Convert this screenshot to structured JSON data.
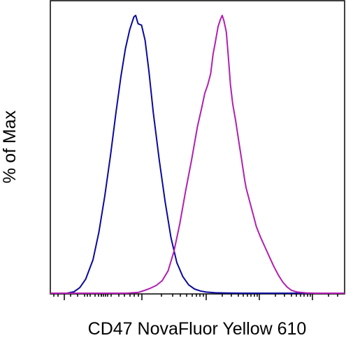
{
  "chart_data": {
    "type": "line",
    "title": "",
    "xlabel": "CD47 NovaFluor Yellow 610",
    "ylabel": "% of Max",
    "x_scale": "log (biexponential-style, unlabeled ticks)",
    "xlim": [
      0,
      100
    ],
    "ylim": [
      0,
      100
    ],
    "grid": false,
    "legend": "none",
    "x_tick_labels": [],
    "y_tick_labels": [],
    "series": [
      {
        "color": "#0a0a9c",
        "points": [
          [
            5.6,
            0
          ],
          [
            8,
            0.5
          ],
          [
            10,
            2
          ],
          [
            12,
            5
          ],
          [
            14.5,
            12
          ],
          [
            16.5,
            22
          ],
          [
            18.5,
            35
          ],
          [
            20.5,
            50
          ],
          [
            22.3,
            65
          ],
          [
            24,
            78
          ],
          [
            25.5,
            88
          ],
          [
            27,
            95
          ],
          [
            28.4,
            99.5
          ],
          [
            29,
            100
          ],
          [
            29.8,
            97
          ],
          [
            31,
            96.5
          ],
          [
            32.2,
            91
          ],
          [
            33.5,
            80
          ],
          [
            35,
            65
          ],
          [
            37,
            48
          ],
          [
            39,
            33
          ],
          [
            41,
            20
          ],
          [
            43,
            11
          ],
          [
            45,
            6
          ],
          [
            47,
            3
          ],
          [
            49,
            1.5
          ],
          [
            51,
            0.8
          ],
          [
            53,
            0.4
          ],
          [
            56,
            0.15
          ],
          [
            60,
            0.05
          ],
          [
            65,
            0
          ],
          [
            100,
            0
          ]
        ]
      },
      {
        "color": "#b020b0",
        "points": [
          [
            0,
            0
          ],
          [
            26,
            0
          ],
          [
            30,
            0.3
          ],
          [
            32,
            1
          ],
          [
            34,
            1.8
          ],
          [
            36,
            2.8
          ],
          [
            38,
            4.5
          ],
          [
            40,
            8
          ],
          [
            42,
            15
          ],
          [
            44,
            25
          ],
          [
            46,
            37
          ],
          [
            48,
            48
          ],
          [
            50,
            60
          ],
          [
            51.5,
            67
          ],
          [
            52.5,
            72
          ],
          [
            53.5,
            75
          ],
          [
            54.5,
            79
          ],
          [
            55.3,
            86
          ],
          [
            56,
            90
          ],
          [
            57,
            96
          ],
          [
            57.8,
            98.5
          ],
          [
            58.4,
            100
          ],
          [
            59,
            98
          ],
          [
            59.8,
            94
          ],
          [
            60.5,
            85
          ],
          [
            61.2,
            75
          ],
          [
            62,
            68
          ],
          [
            63,
            62
          ],
          [
            64,
            55
          ],
          [
            65,
            48
          ],
          [
            66,
            41
          ],
          [
            66.5,
            38
          ],
          [
            67,
            36
          ],
          [
            68,
            32
          ],
          [
            69,
            28
          ],
          [
            70,
            24
          ],
          [
            71.5,
            20
          ],
          [
            73,
            16.5
          ],
          [
            74.5,
            13
          ],
          [
            76,
            9.5
          ],
          [
            77.5,
            6.5
          ],
          [
            79,
            4
          ],
          [
            80.5,
            2.2
          ],
          [
            82,
            1
          ],
          [
            84,
            0.4
          ],
          [
            87,
            0.1
          ],
          [
            90,
            0
          ],
          [
            100,
            0
          ]
        ]
      }
    ]
  }
}
